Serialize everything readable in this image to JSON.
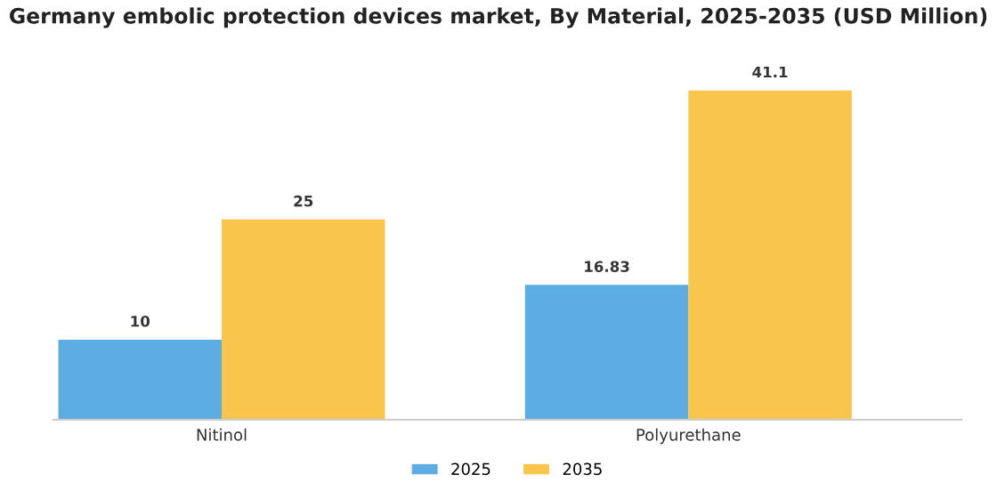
{
  "chart_data": {
    "type": "bar",
    "title": "Germany embolic protection devices market, By Material, 2025-2035 (USD Million)",
    "categories": [
      "Nitinol",
      "Polyurethane"
    ],
    "series": [
      {
        "name": "2025",
        "color": "#5dade2",
        "values": [
          10,
          16.83
        ]
      },
      {
        "name": "2035",
        "color": "#f9c54c",
        "values": [
          25,
          41.1
        ]
      }
    ],
    "data_labels": true,
    "legend": "bottom",
    "grid": false
  }
}
